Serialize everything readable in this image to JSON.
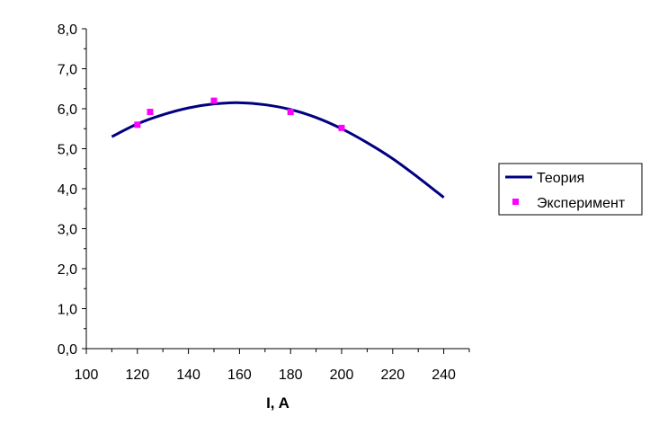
{
  "chart_data": {
    "type": "line",
    "xlabel": "I, A",
    "ylabel": "",
    "xlim": [
      100,
      250
    ],
    "ylim": [
      0,
      8
    ],
    "xticks": [
      "100",
      "120",
      "140",
      "160",
      "180",
      "200",
      "220",
      "240"
    ],
    "yticks": [
      "0,0",
      "1,0",
      "2,0",
      "3,0",
      "4,0",
      "5,0",
      "6,0",
      "7,0",
      "8,0"
    ],
    "grid": false,
    "legend_position": "right",
    "series": [
      {
        "name": "Теория",
        "type": "line",
        "color": "#000080",
        "x": [
          110,
          120,
          130,
          140,
          150,
          160,
          170,
          180,
          190,
          200,
          210,
          220,
          230,
          240
        ],
        "y": [
          5.3,
          5.62,
          5.85,
          6.02,
          6.12,
          6.15,
          6.1,
          5.98,
          5.78,
          5.5,
          5.15,
          4.75,
          4.28,
          3.78
        ]
      },
      {
        "name": "Эксперимент",
        "type": "scatter",
        "color": "#ff00ff",
        "x": [
          120,
          125,
          150,
          180,
          200
        ],
        "y": [
          5.6,
          5.92,
          6.2,
          5.92,
          5.52
        ]
      }
    ]
  }
}
